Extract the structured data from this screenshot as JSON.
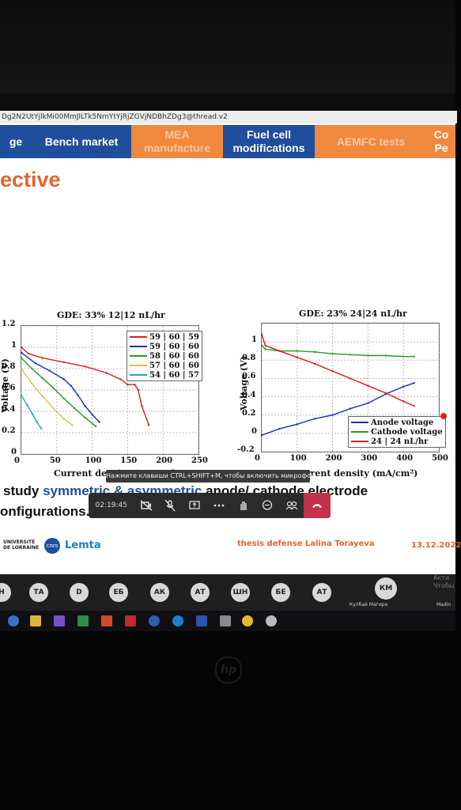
{
  "browser": {
    "url": "Dg2N2UtYjlkMi00MmJlLTk5NmYtYjRjZGVjNDBhZDg3@thread.v2"
  },
  "nav": {
    "items": [
      {
        "label": "ge",
        "color": "#1f4e9c"
      },
      {
        "label": "Bench market",
        "color": "#1f4e9c"
      },
      {
        "label": "MEA manufacture",
        "color": "#f0883e"
      },
      {
        "label": "Fuel cell modifications",
        "color": "#1f4e9c"
      },
      {
        "label": "AEMFC tests",
        "color": "#f0883e"
      },
      {
        "label": "Co Pe",
        "color": "#f0883e"
      }
    ]
  },
  "slide": {
    "title": "ective",
    "bullet1_prefix": "study",
    "bullet1_highlight": "symmetric & asymmetric",
    "bullet1_suffix": "anode/ cathode electrode",
    "bullet2": "onfigurations.",
    "footer_logo1": "UNIVERSITÉ DE LORRAINE",
    "footer_logo2": "cnrs",
    "footer_logo3": "Lemta",
    "footer_text": "thesis defense Lalina Torayeva",
    "footer_date": "13.12.2022"
  },
  "chart_data": [
    {
      "type": "line",
      "title": "GDE: 33% 12|12 nL/hr",
      "xlabel": "Current density (mA/cm²)",
      "ylabel": "Voltage (V)",
      "xlim": [
        0,
        250
      ],
      "ylim": [
        0,
        1.2
      ],
      "xticks": [
        "0",
        "50",
        "100",
        "150",
        "200",
        "250"
      ],
      "yticks": [
        "0",
        "0.2",
        "0.4",
        "0.6",
        "0.8",
        "1",
        "1.2"
      ],
      "legend_position": "top-right",
      "series": [
        {
          "name": "59 | 60 | 59",
          "color": "#d21f1f",
          "x": [
            0,
            10,
            30,
            60,
            90,
            120,
            140,
            150,
            160,
            165,
            170,
            180
          ],
          "y": [
            1.0,
            0.94,
            0.9,
            0.86,
            0.82,
            0.76,
            0.7,
            0.65,
            0.65,
            0.6,
            0.45,
            0.27
          ]
        },
        {
          "name": "59 | 60 | 60",
          "color": "#1a2fc0",
          "x": [
            0,
            20,
            40,
            60,
            70,
            80,
            90,
            100,
            110
          ],
          "y": [
            0.95,
            0.85,
            0.78,
            0.7,
            0.64,
            0.55,
            0.45,
            0.37,
            0.3
          ]
        },
        {
          "name": "58 | 60 | 60",
          "color": "#2a9a2a",
          "x": [
            0,
            15,
            30,
            45,
            60,
            75,
            90,
            105
          ],
          "y": [
            0.9,
            0.8,
            0.71,
            0.62,
            0.52,
            0.43,
            0.34,
            0.26
          ]
        },
        {
          "name": "57 | 60 | 60",
          "color": "#d4c44a",
          "x": [
            0,
            15,
            30,
            45,
            60,
            72
          ],
          "y": [
            0.8,
            0.66,
            0.54,
            0.43,
            0.33,
            0.27
          ]
        },
        {
          "name": "54 | 60 | 57",
          "color": "#2aa5a5",
          "x": [
            0,
            8,
            16,
            22,
            28
          ],
          "y": [
            0.55,
            0.46,
            0.37,
            0.3,
            0.24
          ]
        }
      ]
    },
    {
      "type": "line",
      "title": "GDE: 23% 24|24 nL/hr",
      "xlabel": "Current density (mA/cm²)",
      "ylabel": "Voltage (V)",
      "xlim": [
        0,
        500
      ],
      "ylim": [
        -0.2,
        1.2
      ],
      "xticks": [
        "0",
        "100",
        "200",
        "300",
        "400",
        "500"
      ],
      "yticks": [
        "-0.2",
        "0",
        "0.2",
        "0.4",
        "0.6",
        "0.8",
        "1"
      ],
      "legend_position": "bottom-right",
      "series": [
        {
          "name": "Anode voltage",
          "color": "#1a2fc0",
          "x": [
            0,
            50,
            100,
            150,
            200,
            250,
            300,
            350,
            400,
            430
          ],
          "y": [
            -0.02,
            0.05,
            0.1,
            0.16,
            0.2,
            0.27,
            0.33,
            0.43,
            0.51,
            0.55
          ]
        },
        {
          "name": "Cathode voltage",
          "color": "#2a9a2a",
          "x": [
            0,
            10,
            50,
            100,
            150,
            200,
            250,
            300,
            350,
            400,
            430
          ],
          "y": [
            0.96,
            0.92,
            0.9,
            0.9,
            0.89,
            0.87,
            0.86,
            0.85,
            0.85,
            0.84,
            0.84
          ]
        },
        {
          "name": "24 | 24 nL/hr",
          "color": "#d21f1f",
          "x": [
            0,
            10,
            50,
            100,
            150,
            200,
            250,
            300,
            350,
            400,
            430
          ],
          "y": [
            1.08,
            0.96,
            0.9,
            0.83,
            0.76,
            0.68,
            0.6,
            0.52,
            0.44,
            0.35,
            0.3
          ]
        }
      ]
    }
  ],
  "meeting": {
    "timer": "02:19:45",
    "tooltip": "Нажмите клавиши CTRL+SHIFT+M, чтобы включить микрофон.",
    "controls": [
      "camera-off-icon",
      "mic-off-icon",
      "share-icon",
      "more-icon",
      "raise-hand-icon",
      "chat-icon",
      "participants-icon",
      "hang-up-icon"
    ],
    "hangup_color": "#c4314b"
  },
  "participants": {
    "initials": [
      "Н",
      "ТА",
      "D",
      "ЕБ",
      "АК",
      "АТ",
      "ШН",
      "БЕ",
      "АТ",
      "КМ"
    ],
    "active_name": "Кулбай Магира",
    "right_name": "Madin",
    "activation_text": "Акти Чтобы"
  },
  "taskbar": {
    "icons": [
      "search-icon",
      "folder-icon",
      "visual-studio-icon",
      "excel-icon",
      "app-icon",
      "app-icon-2",
      "app-icon-3",
      "app-icon-4",
      "calculator-icon",
      "chrome-icon",
      "settings-icon"
    ]
  }
}
